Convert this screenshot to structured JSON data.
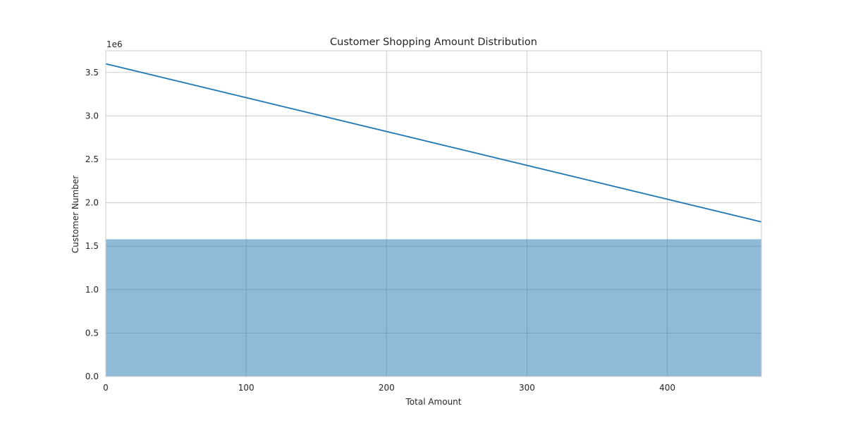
{
  "chart_data": {
    "type": "area",
    "title": "Customer Shopping Amount Distribution",
    "xlabel": "Total Amount",
    "ylabel": "Customer Number",
    "y_offset_text": "1e6",
    "xlim": [
      0,
      467
    ],
    "ylim": [
      0,
      3750000
    ],
    "x_ticks": [
      0,
      100,
      200,
      300,
      400
    ],
    "x_tick_labels": [
      "0",
      "100",
      "200",
      "300",
      "400"
    ],
    "y_ticks": [
      0,
      500000,
      1000000,
      1500000,
      2000000,
      2500000,
      3000000,
      3500000
    ],
    "y_tick_labels": [
      "0.0",
      "0.5",
      "1.0",
      "1.5",
      "2.0",
      "2.5",
      "3.0",
      "3.5"
    ],
    "grid": true,
    "series": [
      {
        "type": "line",
        "x": [
          0,
          467
        ],
        "y": [
          3600000,
          1780000
        ],
        "color": "#1f77b4"
      },
      {
        "type": "area",
        "x": [
          0,
          467
        ],
        "y": [
          1580000,
          1580000
        ],
        "color": "#1f77b4",
        "alpha": 0.5
      }
    ]
  }
}
